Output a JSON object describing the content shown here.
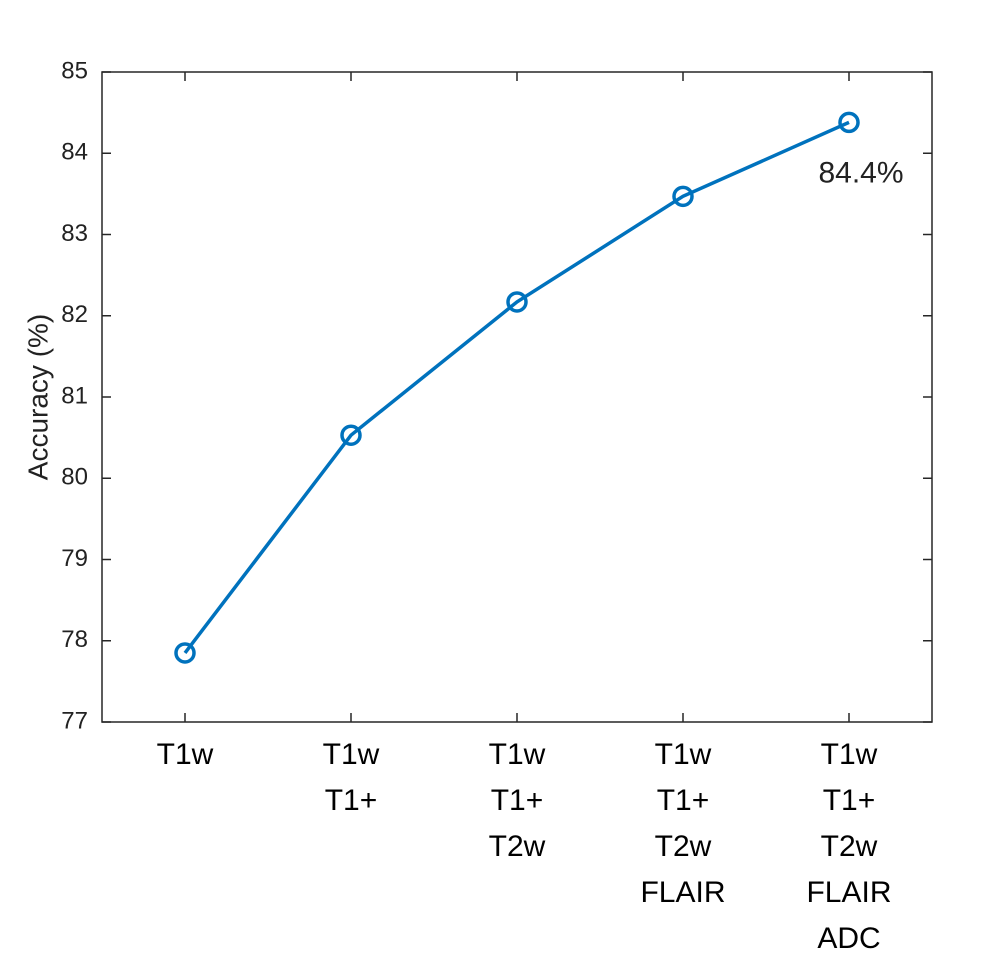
{
  "chart_data": {
    "type": "line",
    "y_label": "Accuracy (%)",
    "categories": [
      [
        "T1w"
      ],
      [
        "T1w",
        "T1+"
      ],
      [
        "T1w",
        "T1+",
        "T2w"
      ],
      [
        "T1w",
        "T1+",
        "T2w",
        "FLAIR"
      ],
      [
        "T1w",
        "T1+",
        "T2w",
        "FLAIR",
        "ADC"
      ]
    ],
    "values": [
      77.85,
      80.53,
      82.17,
      83.47,
      84.38
    ],
    "value_labels": [
      null,
      null,
      null,
      null,
      "84.4%"
    ],
    "color": "#0072bd",
    "ylim": [
      77,
      85
    ],
    "yticks": [
      77,
      78,
      79,
      80,
      81,
      82,
      83,
      84,
      85
    ]
  }
}
